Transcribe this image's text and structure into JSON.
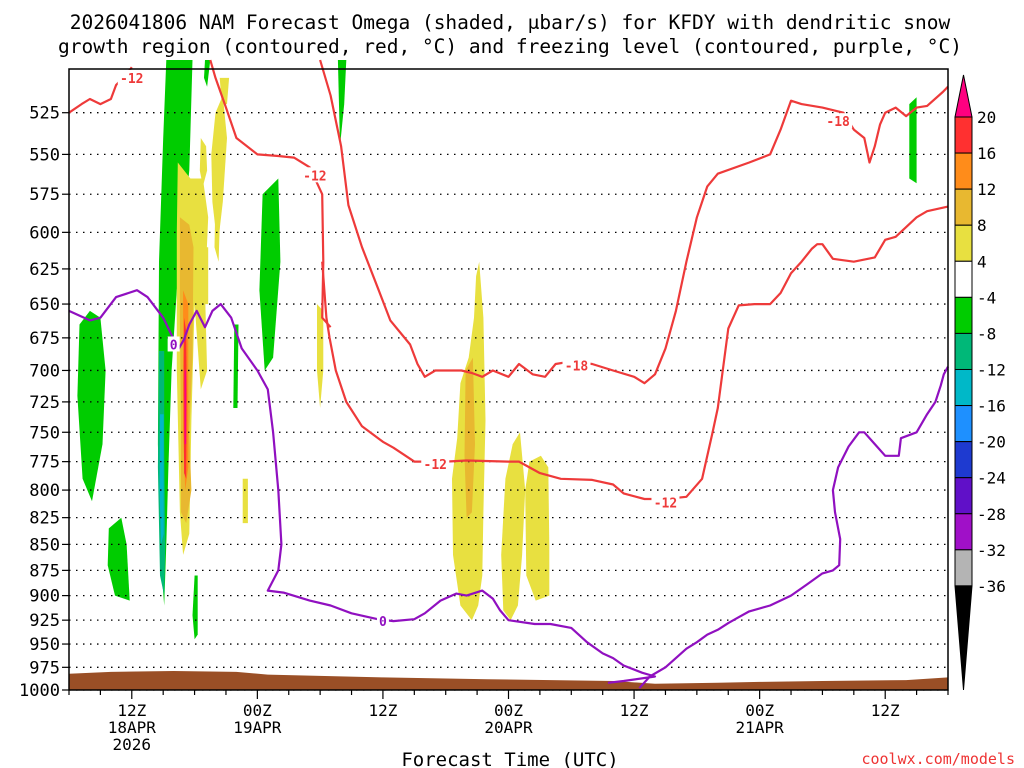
{
  "chart_data": {
    "type": "heatmap",
    "title_line1": "2026041806 NAM Forecast Omega (shaded, μbar/s) for KFDY with dendritic snow",
    "title_line2": "growth region (contoured, red, °C) and freezing level (contoured, purple, °C)",
    "xlabel": "Forecast Time (UTC)",
    "credit": "coolwx.com/models",
    "x_range_hours": [
      0,
      84
    ],
    "y_axis": {
      "scale": "log-pressure",
      "reversed": true,
      "range_mb": [
        1000,
        500
      ],
      "ticks": [
        "525",
        "550",
        "575",
        "600",
        "625",
        "650",
        "675",
        "700",
        "725",
        "750",
        "775",
        "800",
        "825",
        "850",
        "875",
        "900",
        "925",
        "950",
        "975",
        "1000"
      ]
    },
    "x_ticks": [
      {
        "hour": 6,
        "line1": "12Z",
        "line2": "18APR",
        "line3": "2026"
      },
      {
        "hour": 18,
        "line1": "00Z",
        "line2": "19APR",
        "line3": ""
      },
      {
        "hour": 30,
        "line1": "12Z",
        "line2": "",
        "line3": ""
      },
      {
        "hour": 42,
        "line1": "00Z",
        "line2": "20APR",
        "line3": ""
      },
      {
        "hour": 54,
        "line1": "12Z",
        "line2": "",
        "line3": ""
      },
      {
        "hour": 66,
        "line1": "00Z",
        "line2": "21APR",
        "line3": ""
      },
      {
        "hour": 78,
        "line1": "12Z",
        "line2": "",
        "line3": ""
      }
    ],
    "colorbar": {
      "labels": [
        "20",
        "16",
        "12",
        "8",
        "4",
        "-4",
        "-8",
        "-12",
        "-16",
        "-20",
        "-24",
        "-28",
        "-32",
        "-36"
      ],
      "colors": [
        "#ff0080",
        "#ff3030",
        "#ff8c1a",
        "#e8b830",
        "#e8e040",
        "#ffffff",
        "#00cc00",
        "#00b878",
        "#00b8c8",
        "#1e90ff",
        "#1e3ad0",
        "#6010c8",
        "#a010c8",
        "#b4b4b4",
        "#000000"
      ]
    },
    "contours": [
      {
        "name": "-12",
        "color": "#ee3a3a",
        "label_hour": 23.5,
        "label_mb": 563
      },
      {
        "name": "-18",
        "color": "#ee3a3a",
        "label_hour": 73.5,
        "label_mb": 530
      },
      {
        "name": "-12",
        "color": "#ee3a3a",
        "label_hour": 6,
        "label_mb": 505
      },
      {
        "name": "-18",
        "color": "#ee3a3a",
        "label_hour": 48.5,
        "label_mb": 696
      },
      {
        "name": "-12",
        "color": "#ee3a3a",
        "label_hour": 35,
        "label_mb": 777
      },
      {
        "name": "-12",
        "color": "#ee3a3a",
        "label_hour": 57,
        "label_mb": 811
      },
      {
        "name": "0",
        "color": "#9010c0",
        "label_hour": 10,
        "label_mb": 680
      },
      {
        "name": "0",
        "color": "#9010c0",
        "label_hour": 30,
        "label_mb": 926
      }
    ]
  }
}
